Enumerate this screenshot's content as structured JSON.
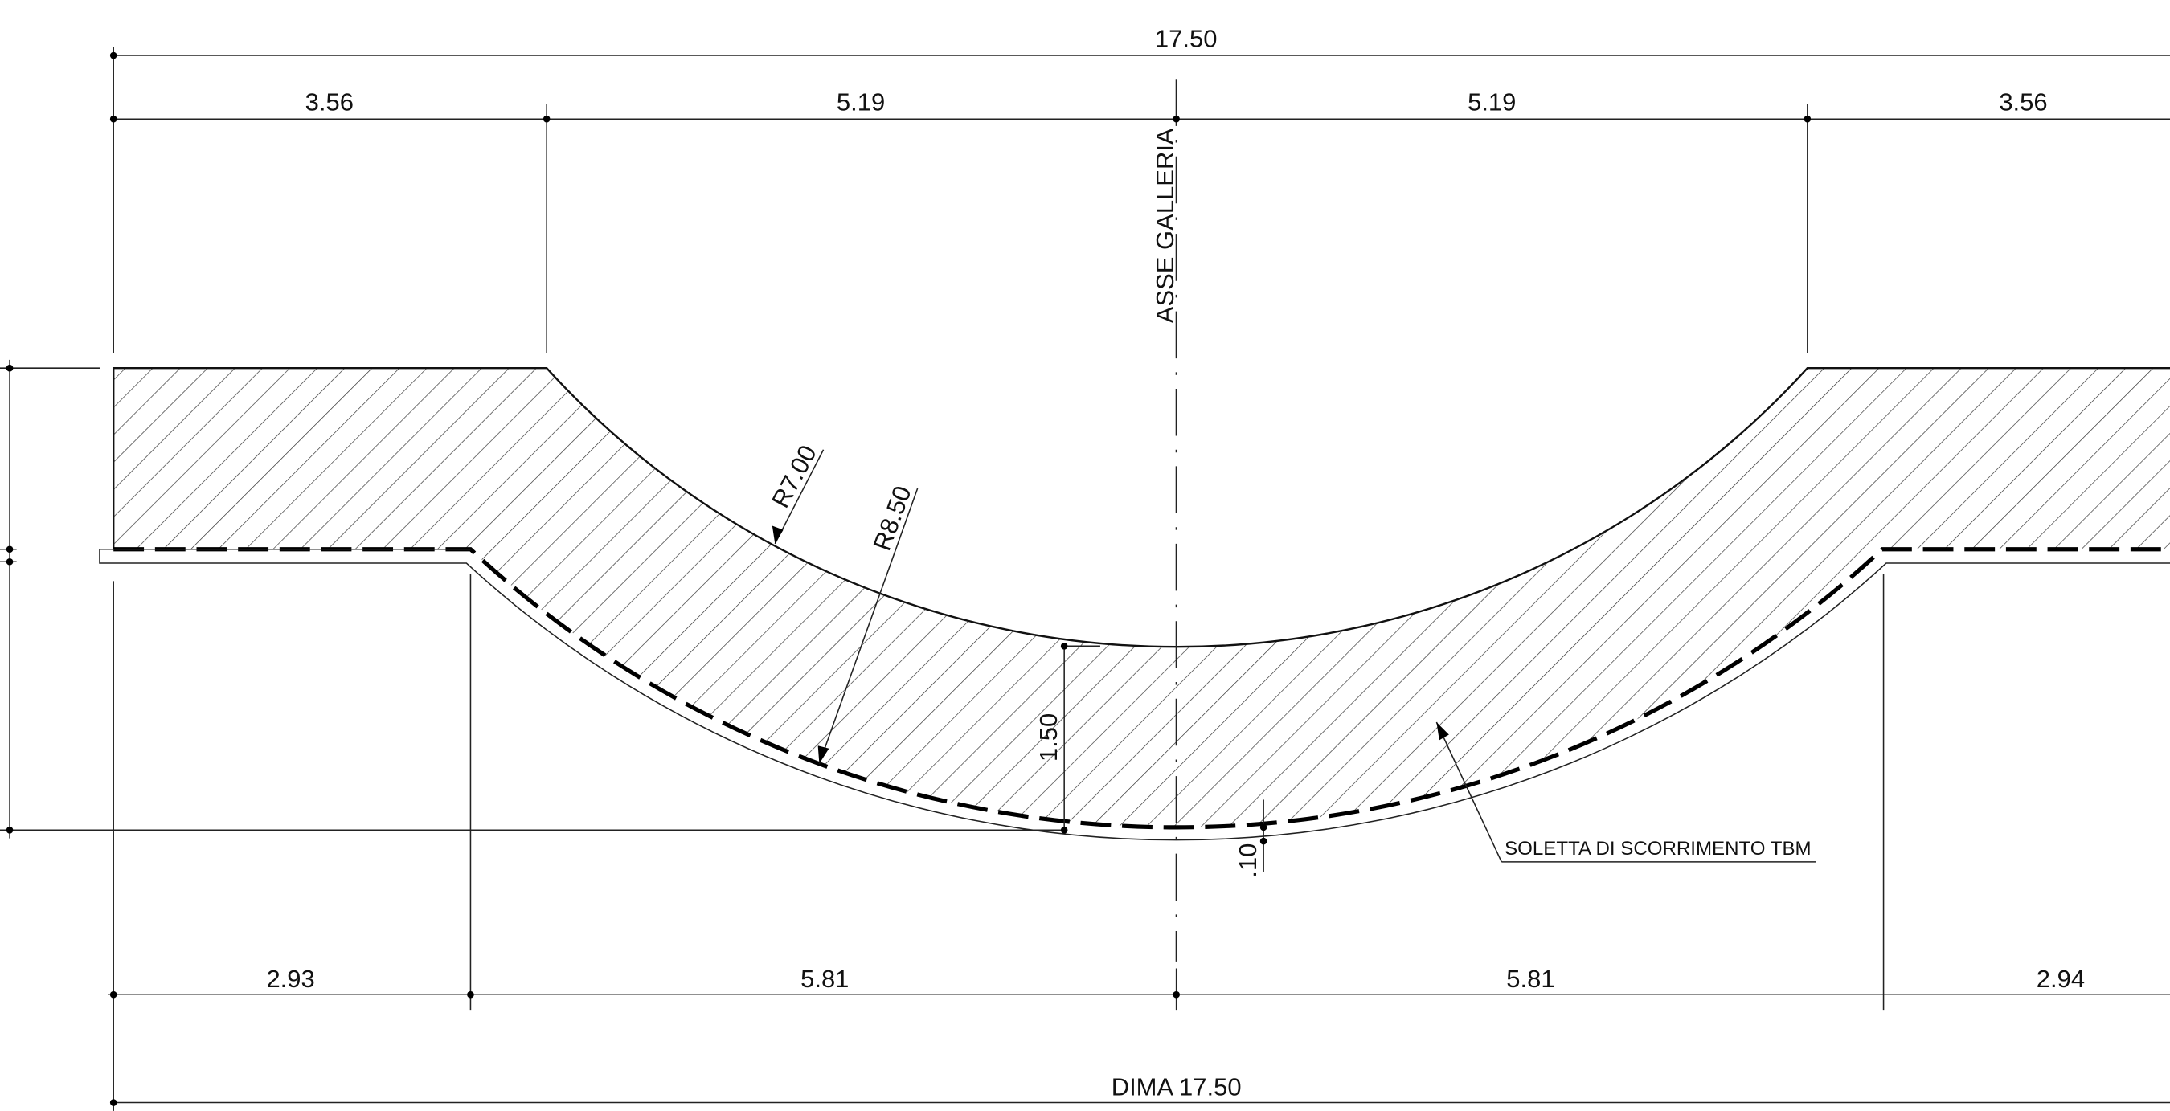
{
  "dimensions": {
    "top_total": "17.50",
    "top": [
      "3.56",
      "5.19",
      "5.19",
      "3.56"
    ],
    "bottom": [
      "2.93",
      "5.81",
      "5.81",
      "2.94"
    ],
    "bottom_total": "DIMA 17.50",
    "depth": "1.50",
    "thickness": ".10"
  },
  "labels": {
    "axis": "ASSE GALLERIA",
    "radius_inner": "R7.00",
    "radius_outer": "R8.50",
    "slab": "SOLETTA DI SCORRIMENTO TBM"
  }
}
